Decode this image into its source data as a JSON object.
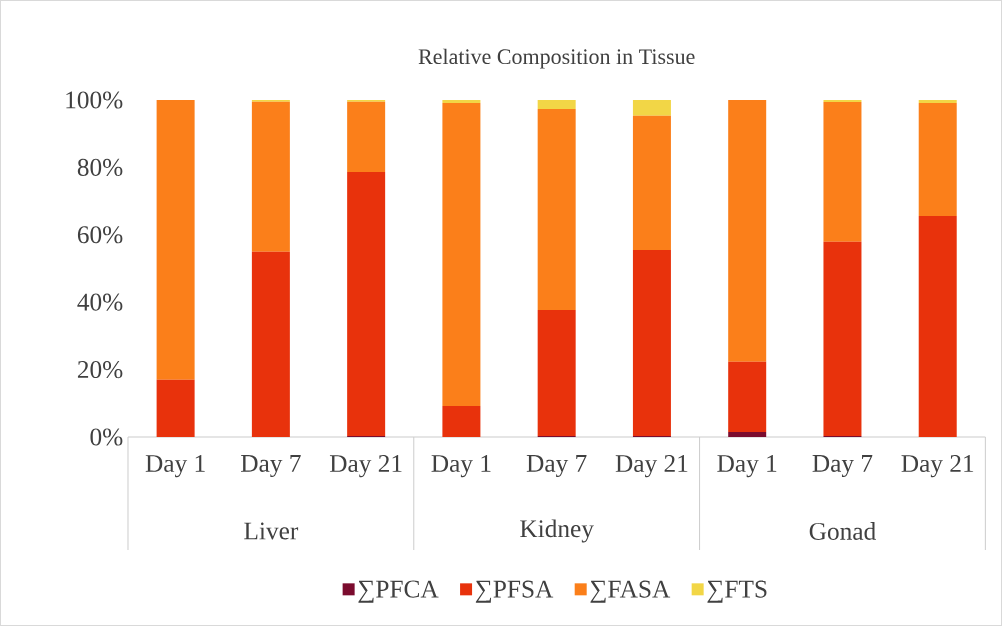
{
  "chart_data": {
    "type": "bar",
    "stacked": true,
    "title": "Relative Composition in Tissue",
    "categories": [
      "Day 1",
      "Day 7",
      "Day 21",
      "Day 1",
      "Day 7",
      "Day 21",
      "Day 1",
      "Day 7",
      "Day 21"
    ],
    "series": [
      {
        "name": "∑PFCA",
        "color": "#7b0c2e",
        "values": [
          0,
          0,
          0.3,
          0,
          0.3,
          0.3,
          1.5,
          0.3,
          0
        ]
      },
      {
        "name": "∑PFSA",
        "color": "#e8320c",
        "values": [
          17,
          55,
          78.3,
          9.2,
          37.4,
          55.2,
          20.8,
          57.6,
          65.6
        ]
      },
      {
        "name": "∑FASA",
        "color": "#fb7f1a",
        "values": [
          83,
          44.5,
          20.9,
          89.9,
          59.6,
          39.8,
          77.7,
          41.5,
          33.5
        ]
      },
      {
        "name": "∑FTS",
        "color": "#f2d646",
        "values": [
          0,
          0.5,
          0.5,
          0.9,
          2.7,
          4.7,
          0,
          0.6,
          0.9
        ]
      }
    ],
    "annotations": [
      "Liver",
      "Kidney",
      "Gonad"
    ],
    "ylim": [
      0,
      100
    ],
    "yticks": [
      {
        "value": 0,
        "label": "0%"
      },
      {
        "value": 20,
        "label": "20%"
      },
      {
        "value": 40,
        "label": "40%"
      },
      {
        "value": 60,
        "label": "60%"
      },
      {
        "value": 80,
        "label": "80%"
      },
      {
        "value": 100,
        "label": "100%"
      }
    ],
    "legend": "bottom"
  }
}
